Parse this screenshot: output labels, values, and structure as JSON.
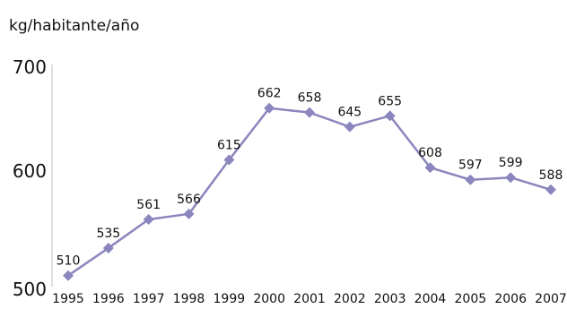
{
  "chart_data": {
    "type": "line",
    "ylabel": "kg/habitante/año",
    "xlabel": "",
    "categories": [
      "1995",
      "1996",
      "1997",
      "1998",
      "1999",
      "2000",
      "2001",
      "2002",
      "2003",
      "2004",
      "2005",
      "2006",
      "2007"
    ],
    "series": [
      {
        "values": [
          510,
          535,
          561,
          566,
          615,
          662,
          658,
          645,
          655,
          608,
          597,
          599,
          588
        ],
        "color": "#8B86BD",
        "marker": "diamond"
      }
    ],
    "ylim": [
      500,
      700
    ],
    "yticks": [
      "500",
      "600",
      "700"
    ],
    "data_labels": [
      "510",
      "535",
      "561",
      "566",
      "615",
      "662",
      "658",
      "645",
      "655",
      "608",
      "597",
      "599",
      "588"
    ],
    "grid": false,
    "legend": "none"
  }
}
